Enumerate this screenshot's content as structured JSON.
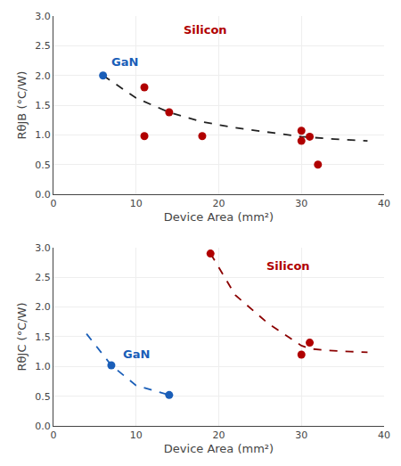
{
  "chart_data": [
    {
      "type": "scatter",
      "xlabel": "Device Area (mm²)",
      "ylabel": "RθJB (°C/W)",
      "xlim": [
        0,
        40
      ],
      "ylim": [
        0,
        3.0
      ],
      "xticks": [
        0,
        10,
        20,
        30,
        40
      ],
      "yticks": [
        {
          "value": 0,
          "label": "0.0"
        },
        0.5,
        {
          "value": 1.0,
          "label": "1.0"
        },
        1.5,
        {
          "value": 2.0,
          "label": "2.0"
        },
        2.5,
        {
          "value": 3.0,
          "label": "3.0"
        }
      ],
      "grid": true,
      "series": [
        {
          "type": "line",
          "line_style": "dashed",
          "color": "#222222",
          "x": [
            6,
            10,
            14,
            18,
            22,
            26,
            30,
            34,
            38
          ],
          "values": [
            2.0,
            1.62,
            1.38,
            1.22,
            1.12,
            1.04,
            0.97,
            0.93,
            0.9
          ]
        },
        {
          "type": "scatter",
          "marker": "circle",
          "color": "#1a5eb8",
          "x": [
            6
          ],
          "values": [
            2.0
          ]
        },
        {
          "type": "scatter",
          "marker": "circle",
          "color": "#b00000",
          "x": [
            11,
            11,
            14,
            18,
            30,
            30,
            31,
            32
          ],
          "values": [
            1.8,
            0.98,
            1.38,
            0.98,
            0.9,
            1.07,
            0.97,
            0.5
          ]
        }
      ],
      "annotations": [
        {
          "text": "GaN",
          "x": 6.8,
          "y": 2.08,
          "color": "#1a5eb8"
        },
        {
          "text": "Silicon",
          "x": 15.5,
          "y": 2.62,
          "color": "#b00000"
        }
      ]
    },
    {
      "type": "scatter",
      "xlabel": "Device Area (mm²)",
      "ylabel": "RθJC (°C/W)",
      "xlim": [
        0,
        40
      ],
      "ylim": [
        0,
        3.0
      ],
      "xticks": [
        0,
        10,
        20,
        30,
        40
      ],
      "yticks": [
        {
          "value": 0,
          "label": "0.0"
        },
        0.5,
        {
          "value": 1.0,
          "label": "1.0"
        },
        1.5,
        {
          "value": 2.0,
          "label": "2.0"
        },
        2.5,
        {
          "value": 3.0,
          "label": "3.0"
        }
      ],
      "grid": true,
      "series": [
        {
          "type": "line",
          "line_style": "dashed",
          "color": "#1a5eb8",
          "x": [
            4,
            7,
            10,
            14
          ],
          "values": [
            1.55,
            1.02,
            0.68,
            0.52
          ]
        },
        {
          "type": "line",
          "line_style": "dashed",
          "color": "#8b0000",
          "x": [
            19,
            22,
            26,
            30,
            31,
            33,
            36,
            38
          ],
          "values": [
            2.9,
            2.2,
            1.72,
            1.35,
            1.3,
            1.27,
            1.25,
            1.24
          ]
        },
        {
          "type": "scatter",
          "marker": "circle",
          "color": "#1a5eb8",
          "x": [
            7,
            14
          ],
          "values": [
            1.02,
            0.52
          ]
        },
        {
          "type": "scatter",
          "marker": "circle",
          "color": "#b00000",
          "x": [
            19,
            30,
            31
          ],
          "values": [
            2.9,
            1.2,
            1.4
          ]
        }
      ],
      "annotations": [
        {
          "text": "GaN",
          "x": 8.2,
          "y": 1.06,
          "color": "#1a5eb8"
        },
        {
          "text": "Silicon",
          "x": 25.5,
          "y": 2.55,
          "color": "#b00000"
        }
      ]
    }
  ]
}
